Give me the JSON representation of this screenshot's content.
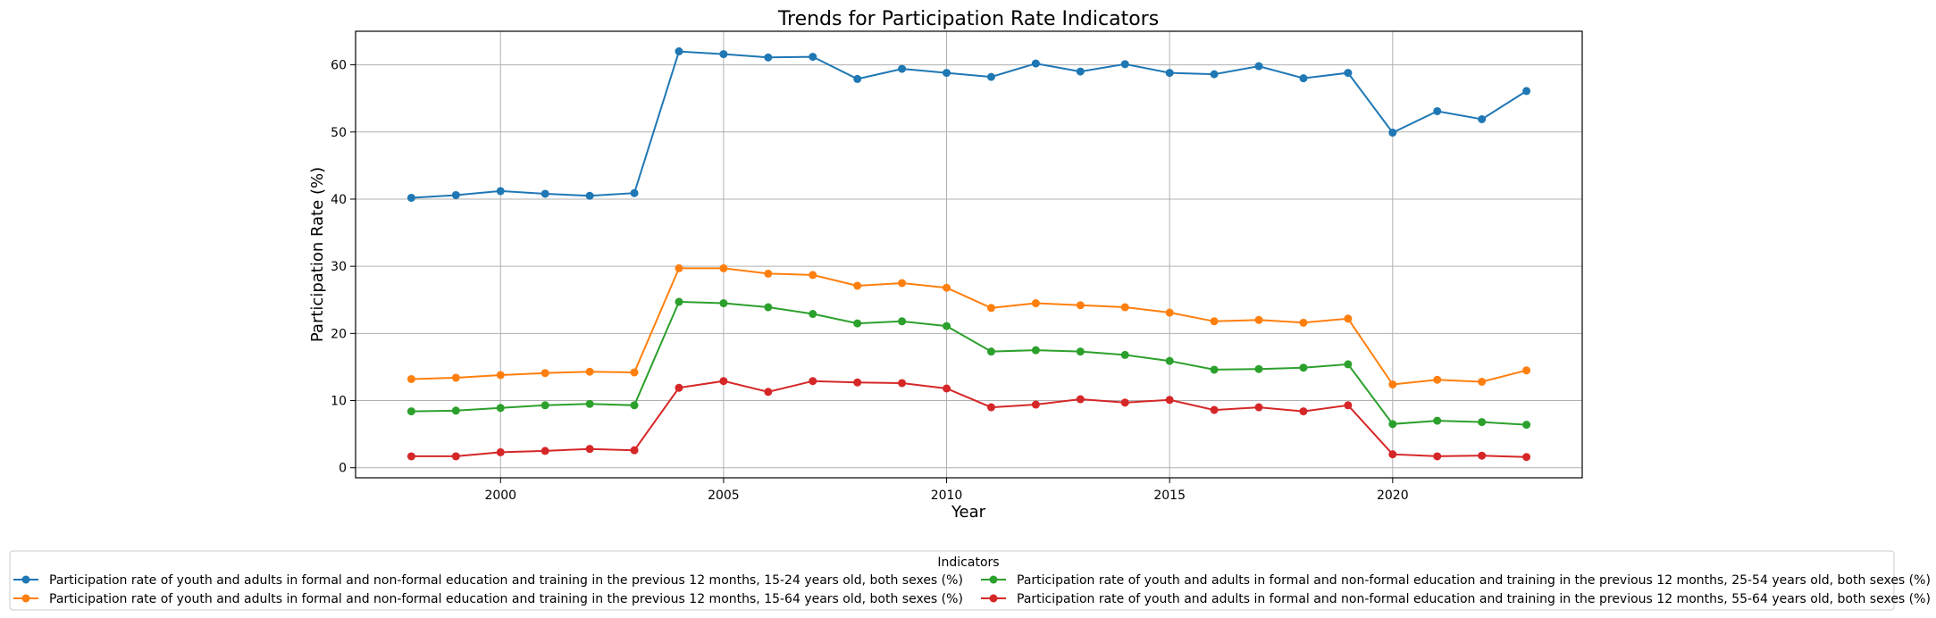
{
  "chart_data": {
    "type": "line",
    "title": "Trends for Participation Rate Indicators",
    "xlabel": "Year",
    "ylabel": "Participation Rate (%)",
    "xlim": [
      1996.75,
      2024.25
    ],
    "ylim": [
      -1.5,
      65.0
    ],
    "x_ticks": [
      2000,
      2005,
      2010,
      2015,
      2020
    ],
    "y_ticks": [
      0,
      10,
      20,
      30,
      40,
      50,
      60
    ],
    "grid": true,
    "legend_title": "Indicators",
    "legend_position": "bottom",
    "x": [
      1998,
      1999,
      2000,
      2001,
      2002,
      2003,
      2004,
      2005,
      2006,
      2007,
      2008,
      2009,
      2010,
      2011,
      2012,
      2013,
      2014,
      2015,
      2016,
      2017,
      2018,
      2019,
      2020,
      2021,
      2022,
      2023
    ],
    "series": [
      {
        "name": "Participation rate of youth and adults in formal and non-formal education and training in the previous 12 months, 15-24 years old, both sexes (%)",
        "color": "#1f77b4",
        "values": [
          40.2,
          40.6,
          41.2,
          40.8,
          40.5,
          40.9,
          62.0,
          61.6,
          61.1,
          61.2,
          57.9,
          59.4,
          58.8,
          58.2,
          60.2,
          59.0,
          60.1,
          58.8,
          58.6,
          59.8,
          58.0,
          58.8,
          49.9,
          53.1,
          51.9,
          56.1
        ]
      },
      {
        "name": "Participation rate of youth and adults in formal and non-formal education and training in the previous 12 months, 15-64 years old, both sexes (%)",
        "color": "#ff7f0e",
        "values": [
          13.2,
          13.4,
          13.8,
          14.1,
          14.3,
          14.2,
          29.7,
          29.7,
          28.9,
          28.7,
          27.1,
          27.5,
          26.8,
          23.8,
          24.5,
          24.2,
          23.9,
          23.1,
          21.8,
          22.0,
          21.6,
          22.2,
          12.4,
          13.1,
          12.8,
          14.5
        ]
      },
      {
        "name": "Participation rate of youth and adults in formal and non-formal education and training in the previous 12 months, 25-54 years old, both sexes (%)",
        "color": "#2ca02c",
        "values": [
          8.4,
          8.5,
          8.9,
          9.3,
          9.5,
          9.3,
          24.7,
          24.5,
          23.9,
          22.9,
          21.5,
          21.8,
          21.1,
          17.3,
          17.5,
          17.3,
          16.8,
          15.9,
          14.6,
          14.7,
          14.9,
          15.4,
          6.5,
          7.0,
          6.8,
          6.4
        ]
      },
      {
        "name": "Participation rate of youth and adults in formal and non-formal education and training in the previous 12 months, 55-64 years old, both sexes (%)",
        "color": "#d62728",
        "values": [
          1.7,
          1.7,
          2.3,
          2.5,
          2.8,
          2.6,
          11.9,
          12.9,
          11.3,
          12.9,
          12.7,
          12.6,
          11.8,
          9.0,
          9.4,
          10.2,
          9.7,
          10.1,
          8.6,
          9.0,
          8.4,
          9.3,
          2.0,
          1.7,
          1.8,
          1.6
        ]
      }
    ]
  }
}
